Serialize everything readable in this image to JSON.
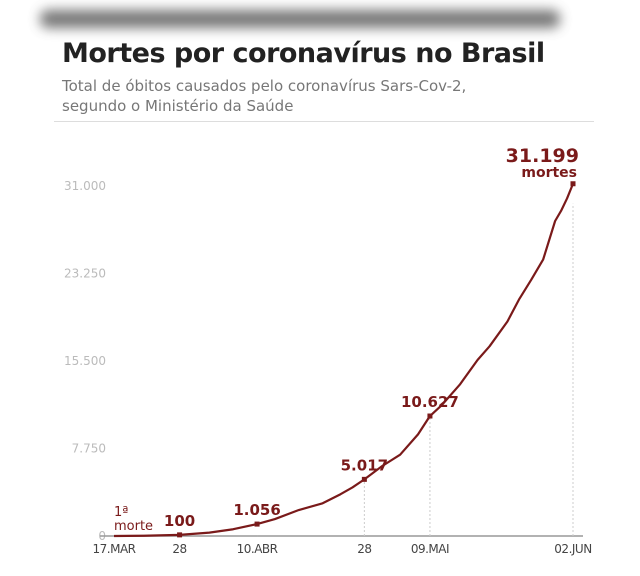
{
  "chart_data": {
    "type": "line",
    "title": "Mortes por coronavírus no Brasil",
    "subtitle_line1": "Total de óbitos causados pelo coronavírus Sars-Cov-2,",
    "subtitle_line2": "segundo o Ministério da Saúde",
    "xlabel": "",
    "ylabel": "",
    "ylim": [
      0,
      31000
    ],
    "x_range_days": [
      0,
      77
    ],
    "y_ticks": [
      {
        "value": 0,
        "label": "0"
      },
      {
        "value": 7750,
        "label": "7.750"
      },
      {
        "value": 15500,
        "label": "15.500"
      },
      {
        "value": 23250,
        "label": "23.250"
      },
      {
        "value": 31000,
        "label": "31.000"
      }
    ],
    "x_ticks": [
      {
        "day": 0,
        "label": "17.MAR"
      },
      {
        "day": 11,
        "label": "28"
      },
      {
        "day": 24,
        "label": "10.ABR"
      },
      {
        "day": 42,
        "label": "28"
      },
      {
        "day": 53,
        "label": "09.MAI"
      },
      {
        "day": 77,
        "label": "02.JUN"
      }
    ],
    "series": [
      {
        "name": "Mortes",
        "color": "#7a1a1a",
        "points": [
          [
            0,
            1
          ],
          [
            5,
            25
          ],
          [
            11,
            100
          ],
          [
            16,
            300
          ],
          [
            20,
            600
          ],
          [
            24,
            1056
          ],
          [
            27,
            1500
          ],
          [
            31,
            2300
          ],
          [
            35,
            2900
          ],
          [
            38,
            3700
          ],
          [
            40,
            4300
          ],
          [
            42,
            5017
          ],
          [
            45,
            6200
          ],
          [
            48,
            7200
          ],
          [
            51,
            9000
          ],
          [
            53,
            10627
          ],
          [
            55,
            11600
          ],
          [
            58,
            13400
          ],
          [
            61,
            15600
          ],
          [
            63,
            16800
          ],
          [
            66,
            19000
          ],
          [
            68,
            21000
          ],
          [
            70,
            22700
          ],
          [
            72,
            24500
          ],
          [
            74,
            27900
          ],
          [
            75,
            28800
          ],
          [
            76,
            29900
          ],
          [
            77,
            31199
          ]
        ]
      }
    ],
    "annotations": [
      {
        "day": 0,
        "value": 1,
        "line1": "1ª",
        "line2": "morte"
      },
      {
        "day": 11,
        "value": 100,
        "label": "100"
      },
      {
        "day": 24,
        "value": 1056,
        "label": "1.056"
      },
      {
        "day": 42,
        "value": 5017,
        "label": "5.017"
      },
      {
        "day": 53,
        "value": 10627,
        "label": "10.627"
      },
      {
        "day": 77,
        "value": 31199,
        "label": "31.199",
        "sub": "mortes"
      }
    ],
    "grid": false,
    "legend": "none"
  }
}
